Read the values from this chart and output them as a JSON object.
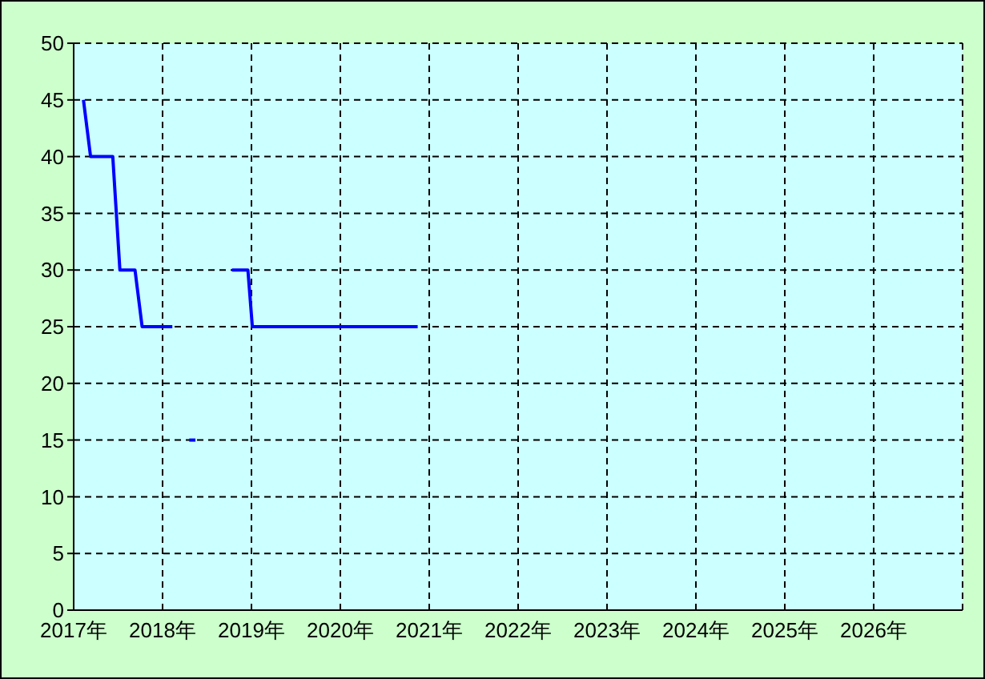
{
  "chart_data": {
    "type": "line",
    "x": [
      2017.11,
      2017.19,
      2017.44,
      2017.52,
      2017.69,
      2017.77,
      2018.11,
      2018.5,
      2018.78,
      2018.96,
      2019.01,
      2020.87
    ],
    "series": [
      {
        "color": "#0000ff",
        "values": [
          45,
          40,
          40,
          30,
          30,
          25,
          25,
          null,
          30,
          30,
          25,
          25
        ]
      },
      {
        "color": "#0000ff",
        "x": [
          2018.3,
          2018.37
        ],
        "values": [
          15,
          15
        ]
      }
    ],
    "xlim": [
      2017,
      2027
    ],
    "xticks": [
      {
        "value": 2017,
        "label": "2017年"
      },
      {
        "value": 2018,
        "label": "2018年"
      },
      {
        "value": 2019,
        "label": "2019年"
      },
      {
        "value": 2020,
        "label": "2020年"
      },
      {
        "value": 2021,
        "label": "2021年"
      },
      {
        "value": 2022,
        "label": "2022年"
      },
      {
        "value": 2023,
        "label": "2023年"
      },
      {
        "value": 2024,
        "label": "2024年"
      },
      {
        "value": 2025,
        "label": "2025年"
      },
      {
        "value": 2026,
        "label": "2026年"
      }
    ],
    "ylim": [
      0,
      50
    ],
    "yticks": [
      0,
      5,
      10,
      15,
      20,
      25,
      30,
      35,
      40,
      45,
      50
    ],
    "grid": true,
    "marker": "none",
    "line_style": "solid"
  }
}
